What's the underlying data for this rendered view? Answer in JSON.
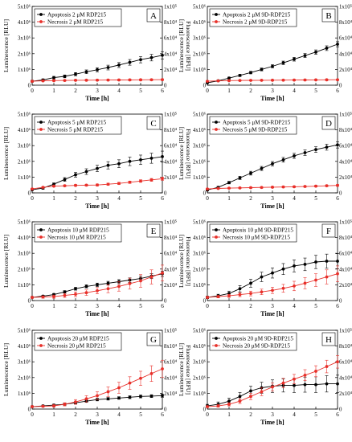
{
  "chart_data": [
    {
      "type": "line",
      "panel_letter": "A",
      "xlabel": "Time [h]",
      "ylabel": "Luminescence [RLU]",
      "y2label": "Fluorescence [RFU]",
      "x": [
        0,
        0.5,
        1,
        1.5,
        2,
        2.5,
        3,
        3.5,
        4,
        4.5,
        5,
        5.5,
        6
      ],
      "x_ticks": [
        "0",
        "1",
        "2",
        "3",
        "4",
        "5",
        "6"
      ],
      "y_ticks": [
        "0",
        "1x10⁶",
        "2x10⁶",
        "3x10⁶",
        "4x10⁶",
        "5x10⁶"
      ],
      "y2_ticks": [
        "0",
        "2x10⁴",
        "4x10⁴",
        "6x10⁴",
        "8x10⁴",
        "1x10⁵"
      ],
      "xlim": [
        0,
        6
      ],
      "ylim": [
        0,
        5000000
      ],
      "y2lim": [
        0,
        100000
      ],
      "series": [
        {
          "name": "Apoptosis 2 μM RDP215",
          "color": "#000000",
          "axis": "left",
          "values": [
            250000,
            330000,
            480000,
            560000,
            700000,
            850000,
            980000,
            1120000,
            1280000,
            1450000,
            1620000,
            1750000,
            1900000
          ],
          "errors": [
            60000,
            70000,
            80000,
            90000,
            100000,
            120000,
            130000,
            150000,
            160000,
            180000,
            200000,
            210000,
            230000
          ]
        },
        {
          "name": "Necrosis   2 μM RDP215",
          "color": "#e8302a",
          "axis": "right",
          "values": [
            5000,
            5500,
            5800,
            6000,
            6200,
            6300,
            6400,
            6500,
            6600,
            6700,
            6800,
            6900,
            7000
          ],
          "errors": [
            800,
            800,
            800,
            800,
            900,
            900,
            900,
            900,
            900,
            1000,
            1000,
            1000,
            1000
          ]
        }
      ]
    },
    {
      "type": "line",
      "panel_letter": "B",
      "xlabel": "Time [h]",
      "ylabel": "Luminescence [RLU]",
      "y2label": "Fluorescence [RFU]",
      "x": [
        0,
        0.5,
        1,
        1.5,
        2,
        2.5,
        3,
        3.5,
        4,
        4.5,
        5,
        5.5,
        6
      ],
      "x_ticks": [
        "0",
        "1",
        "2",
        "3",
        "4",
        "5",
        "6"
      ],
      "y_ticks": [
        "0",
        "1x10⁶",
        "2x10⁶",
        "3x10⁶",
        "4x10⁶",
        "5x10⁶"
      ],
      "y2_ticks": [
        "0",
        "2x10⁴",
        "4x10⁴",
        "6x10⁴",
        "8x10⁴",
        "1x10⁵"
      ],
      "xlim": [
        0,
        6
      ],
      "ylim": [
        0,
        5000000
      ],
      "y2lim": [
        0,
        100000
      ],
      "series": [
        {
          "name": "Apoptosis 2 μM 9D-RDP215",
          "color": "#000000",
          "axis": "left",
          "values": [
            150000,
            280000,
            450000,
            620000,
            800000,
            1000000,
            1200000,
            1420000,
            1650000,
            1880000,
            2100000,
            2350000,
            2600000
          ],
          "errors": [
            40000,
            50000,
            60000,
            70000,
            80000,
            90000,
            100000,
            110000,
            120000,
            130000,
            140000,
            150000,
            160000
          ]
        },
        {
          "name": "Necrosis   2 μM 9D-RDP215",
          "color": "#e8302a",
          "axis": "right",
          "values": [
            5000,
            5500,
            5800,
            6000,
            6100,
            6200,
            6300,
            6400,
            6500,
            6600,
            6700,
            6800,
            6900
          ],
          "errors": [
            600,
            600,
            600,
            700,
            700,
            700,
            700,
            700,
            800,
            800,
            800,
            800,
            800
          ]
        }
      ]
    },
    {
      "type": "line",
      "panel_letter": "C",
      "xlabel": "Time [h]",
      "ylabel": "Luminescence [RLU]",
      "y2label": "Fluorescence [RFU]",
      "x": [
        0,
        0.5,
        1,
        1.5,
        2,
        2.5,
        3,
        3.5,
        4,
        4.5,
        5,
        5.5,
        6
      ],
      "x_ticks": [
        "0",
        "1",
        "2",
        "3",
        "4",
        "5",
        "6"
      ],
      "y_ticks": [
        "0",
        "1x10⁶",
        "2x10⁶",
        "3x10⁶",
        "4x10⁶",
        "5x10⁶"
      ],
      "y2_ticks": [
        "0",
        "2x10⁴",
        "4x10⁴",
        "6x10⁴",
        "8x10⁴",
        "1x10⁵"
      ],
      "xlim": [
        0,
        6
      ],
      "ylim": [
        0,
        5000000
      ],
      "y2lim": [
        0,
        100000
      ],
      "series": [
        {
          "name": "Apoptosis 5 μM RDP215",
          "color": "#000000",
          "axis": "left",
          "values": [
            200000,
            300000,
            550000,
            850000,
            1150000,
            1350000,
            1550000,
            1750000,
            1850000,
            2000000,
            2100000,
            2200000,
            2300000
          ],
          "errors": [
            50000,
            60000,
            80000,
            120000,
            150000,
            180000,
            200000,
            230000,
            250000,
            270000,
            300000,
            320000,
            350000
          ]
        },
        {
          "name": "Necrosis   5 μM RDP215",
          "color": "#e8302a",
          "axis": "right",
          "values": [
            5000,
            7000,
            8500,
            9000,
            9500,
            9800,
            10000,
            11000,
            12000,
            13500,
            15000,
            16500,
            18000
          ],
          "errors": [
            800,
            900,
            1000,
            1000,
            1000,
            1100,
            1200,
            1300,
            1400,
            1500,
            1600,
            1800,
            2000
          ]
        }
      ]
    },
    {
      "type": "line",
      "panel_letter": "D",
      "xlabel": "Time [h]",
      "ylabel": "Luminescence [RLU]",
      "y2label": "Fluorescence [RFU]",
      "x": [
        0,
        0.5,
        1,
        1.5,
        2,
        2.5,
        3,
        3.5,
        4,
        4.5,
        5,
        5.5,
        6
      ],
      "x_ticks": [
        "0",
        "1",
        "2",
        "3",
        "4",
        "5",
        "6"
      ],
      "y_ticks": [
        "0",
        "1x10⁶",
        "2x10⁶",
        "3x10⁶",
        "4x10⁶",
        "5x10⁶"
      ],
      "y2_ticks": [
        "0",
        "2x10⁴",
        "4x10⁴",
        "6x10⁴",
        "8x10⁴",
        "1x10⁵"
      ],
      "xlim": [
        0,
        6
      ],
      "ylim": [
        0,
        5000000
      ],
      "y2lim": [
        0,
        100000
      ],
      "series": [
        {
          "name": "Apoptosis 5 μM 9D-RDP215",
          "color": "#000000",
          "axis": "left",
          "values": [
            180000,
            350000,
            650000,
            950000,
            1250000,
            1550000,
            1850000,
            2100000,
            2350000,
            2550000,
            2750000,
            2900000,
            3050000
          ],
          "errors": [
            50000,
            60000,
            80000,
            100000,
            120000,
            130000,
            140000,
            150000,
            160000,
            170000,
            180000,
            190000,
            200000
          ]
        },
        {
          "name": "Necrosis   5 μM 9D-RDP215",
          "color": "#e8302a",
          "axis": "right",
          "values": [
            5000,
            5600,
            6000,
            6300,
            6600,
            6900,
            7200,
            7500,
            7800,
            8100,
            8500,
            9000,
            9500
          ],
          "errors": [
            600,
            600,
            700,
            700,
            700,
            800,
            800,
            800,
            900,
            900,
            1000,
            1000,
            1000
          ]
        }
      ]
    },
    {
      "type": "line",
      "panel_letter": "E",
      "xlabel": "Time [h]",
      "ylabel": "Luminescence [RLU]",
      "y2label": "Fluorescence [RFU]",
      "x": [
        0,
        0.5,
        1,
        1.5,
        2,
        2.5,
        3,
        3.5,
        4,
        4.5,
        5,
        5.5,
        6
      ],
      "x_ticks": [
        "0",
        "1",
        "2",
        "3",
        "4",
        "5",
        "6"
      ],
      "y_ticks": [
        "0",
        "1x10⁶",
        "2x10⁶",
        "3x10⁶",
        "4x10⁶",
        "5x10⁶"
      ],
      "y2_ticks": [
        "0",
        "2x10⁴",
        "4x10⁴",
        "6x10⁴",
        "8x10⁴",
        "1x10⁵"
      ],
      "xlim": [
        0,
        6
      ],
      "ylim": [
        0,
        5000000
      ],
      "y2lim": [
        0,
        100000
      ],
      "series": [
        {
          "name": "Apoptosis 10 μM RDP215",
          "color": "#000000",
          "axis": "left",
          "values": [
            200000,
            280000,
            380000,
            550000,
            750000,
            900000,
            1000000,
            1100000,
            1200000,
            1300000,
            1400000,
            1550000,
            1700000
          ],
          "errors": [
            50000,
            60000,
            70000,
            80000,
            90000,
            100000,
            110000,
            120000,
            130000,
            140000,
            150000,
            160000,
            170000
          ]
        },
        {
          "name": "Necrosis   10 μM RDP215",
          "color": "#e8302a",
          "axis": "right",
          "values": [
            4000,
            4500,
            5000,
            6500,
            8000,
            10000,
            12500,
            15000,
            18000,
            21500,
            25000,
            30000,
            35000
          ],
          "errors": [
            1000,
            1500,
            2000,
            2500,
            3000,
            3500,
            4000,
            5000,
            6000,
            7000,
            8000,
            9000,
            10000
          ]
        }
      ]
    },
    {
      "type": "line",
      "panel_letter": "F",
      "xlabel": "Time [h]",
      "ylabel": "Luminescence [RLU]",
      "y2label": "Fluorescence [RFU]",
      "x": [
        0,
        0.5,
        1,
        1.5,
        2,
        2.5,
        3,
        3.5,
        4,
        4.5,
        5,
        5.5,
        6
      ],
      "x_ticks": [
        "0",
        "1",
        "2",
        "3",
        "4",
        "5",
        "6"
      ],
      "y_ticks": [
        "0",
        "1x10⁶",
        "2x10⁶",
        "3x10⁶",
        "4x10⁶",
        "5x10⁶"
      ],
      "y2_ticks": [
        "0",
        "2x10⁴",
        "4x10⁴",
        "6x10⁴",
        "8x10⁴",
        "1x10⁵"
      ],
      "xlim": [
        0,
        6
      ],
      "ylim": [
        0,
        5000000
      ],
      "y2lim": [
        0,
        100000
      ],
      "series": [
        {
          "name": "Apoptosis 10 μM 9D-RDP215",
          "color": "#000000",
          "axis": "left",
          "values": [
            200000,
            300000,
            450000,
            750000,
            1100000,
            1500000,
            1750000,
            2000000,
            2200000,
            2300000,
            2450000,
            2500000,
            2500000
          ],
          "errors": [
            80000,
            100000,
            150000,
            200000,
            250000,
            300000,
            320000,
            350000,
            380000,
            400000,
            420000,
            450000,
            480000
          ]
        },
        {
          "name": "Necrosis   10 μM 9D-RDP215",
          "color": "#e8302a",
          "axis": "right",
          "values": [
            4000,
            5000,
            6000,
            7500,
            9000,
            11000,
            13000,
            15500,
            18500,
            22000,
            26000,
            30000,
            34000
          ],
          "errors": [
            1000,
            1500,
            2000,
            2500,
            3000,
            3500,
            4000,
            5000,
            6000,
            7000,
            8000,
            9000,
            10000
          ]
        }
      ]
    },
    {
      "type": "line",
      "panel_letter": "G",
      "xlabel": "Time [h]",
      "ylabel": "Luminescence [RLU]",
      "y2label": "Fluorescence [RFU]",
      "x": [
        0,
        0.5,
        1,
        1.5,
        2,
        2.5,
        3,
        3.5,
        4,
        4.5,
        5,
        5.5,
        6
      ],
      "x_ticks": [
        "0",
        "1",
        "2",
        "3",
        "4",
        "5",
        "6"
      ],
      "y_ticks": [
        "0",
        "1x10⁶",
        "2x10⁶",
        "3x10⁶",
        "4x10⁶",
        "5x10⁶"
      ],
      "y2_ticks": [
        "0",
        "2x10⁴",
        "4x10⁴",
        "6x10⁴",
        "8x10⁴",
        "1x10⁵"
      ],
      "xlim": [
        0,
        6
      ],
      "ylim": [
        0,
        5000000
      ],
      "y2lim": [
        0,
        100000
      ],
      "series": [
        {
          "name": "Apoptosis 20 μM RDP215",
          "color": "#000000",
          "axis": "left",
          "values": [
            150000,
            200000,
            250000,
            300000,
            400000,
            500000,
            600000,
            650000,
            700000,
            750000,
            800000,
            820000,
            850000
          ],
          "errors": [
            50000,
            50000,
            60000,
            60000,
            70000,
            70000,
            80000,
            80000,
            80000,
            90000,
            90000,
            90000,
            100000
          ]
        },
        {
          "name": "Necrosis   20 μM RDP215",
          "color": "#e8302a",
          "axis": "right",
          "values": [
            3000,
            3500,
            4000,
            6000,
            9000,
            13000,
            17000,
            22000,
            27000,
            33000,
            39000,
            45000,
            51000
          ],
          "errors": [
            1000,
            1000,
            1500,
            2000,
            3000,
            4000,
            5000,
            6000,
            7000,
            8000,
            9000,
            10000,
            11000
          ]
        }
      ]
    },
    {
      "type": "line",
      "panel_letter": "H",
      "xlabel": "Time [h]",
      "ylabel": "Luminescence [RLU]",
      "y2label": "Fluorescence [RFU]",
      "x": [
        0,
        0.5,
        1,
        1.5,
        2,
        2.5,
        3,
        3.5,
        4,
        4.5,
        5,
        5.5,
        6
      ],
      "x_ticks": [
        "0",
        "1",
        "2",
        "3",
        "4",
        "5",
        "6"
      ],
      "y_ticks": [
        "0",
        "1x10⁶",
        "2x10⁶",
        "3x10⁶",
        "4x10⁶",
        "5x10⁶"
      ],
      "y2_ticks": [
        "0",
        "2x10⁴",
        "4x10⁴",
        "6x10⁴",
        "8x10⁴",
        "1x10⁵"
      ],
      "xlim": [
        0,
        6
      ],
      "ylim": [
        0,
        5000000
      ],
      "y2lim": [
        0,
        100000
      ],
      "series": [
        {
          "name": "Apoptosis 20 μM 9D-RDP215",
          "color": "#000000",
          "axis": "left",
          "values": [
            200000,
            300000,
            500000,
            800000,
            1150000,
            1350000,
            1450000,
            1500000,
            1500000,
            1550000,
            1550000,
            1600000,
            1600000
          ],
          "errors": [
            100000,
            150000,
            200000,
            250000,
            300000,
            350000,
            400000,
            420000,
            450000,
            480000,
            500000,
            520000,
            550000
          ]
        },
        {
          "name": "Necrosis   20 μM 9D-RDP215",
          "color": "#e8302a",
          "axis": "right",
          "values": [
            3000,
            4000,
            6000,
            10000,
            16000,
            22000,
            28000,
            33000,
            38000,
            43000,
            48000,
            54000,
            60000
          ],
          "errors": [
            1000,
            1500,
            2000,
            3000,
            4000,
            5000,
            5000,
            6000,
            6000,
            7000,
            7000,
            8000,
            8000
          ]
        }
      ]
    }
  ]
}
